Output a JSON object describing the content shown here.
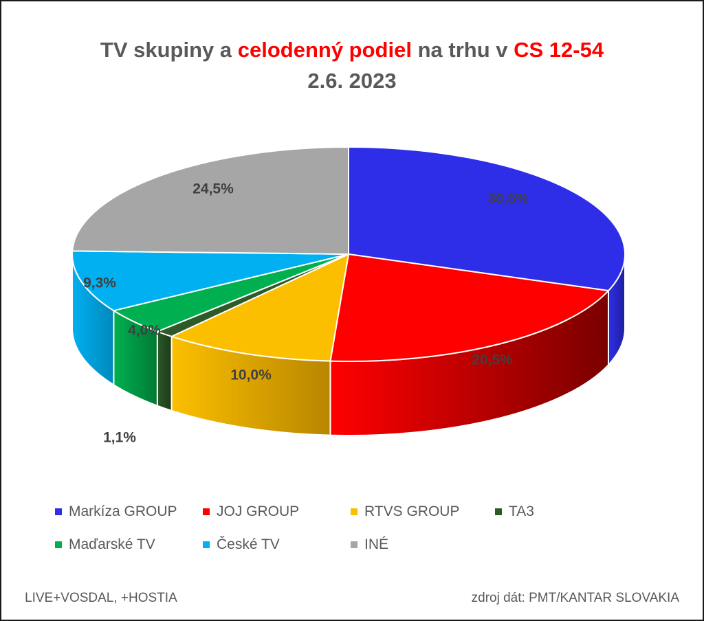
{
  "chart_data": {
    "type": "pie",
    "title_parts": [
      {
        "text": "TV skupiny a ",
        "highlight": false
      },
      {
        "text": "celodenný podiel",
        "highlight": true
      },
      {
        "text": " na trhu v ",
        "highlight": false
      },
      {
        "text": "CS 12-54",
        "highlight": true
      }
    ],
    "subtitle": "2.6. 2023",
    "slices": [
      {
        "name": "Markíza GROUP",
        "value": 30.5,
        "label": "30,5%",
        "color": "#2e2ee8",
        "side_color": "#1f1f9e"
      },
      {
        "name": "JOJ GROUP",
        "value": 20.5,
        "label": "20,5%",
        "color": "#ff0000",
        "side_color": "#7a0000"
      },
      {
        "name": "RTVS GROUP",
        "value": 10.0,
        "label": "10,0%",
        "color": "#fbbf00",
        "side_color": "#b88600"
      },
      {
        "name": "TA3",
        "value": 1.1,
        "label": "1,1%",
        "color": "#2d5a27",
        "side_color": "#1c3a18"
      },
      {
        "name": "Maďarské  TV",
        "value": 4.0,
        "label": "4,0%",
        "color": "#00b050",
        "side_color": "#007a36"
      },
      {
        "name": "České  TV",
        "value": 9.3,
        "label": "9,3%",
        "color": "#00b0f0",
        "side_color": "#0088bb"
      },
      {
        "name": "INÉ",
        "value": 24.5,
        "label": "24,5%",
        "color": "#a6a6a6",
        "side_color": "#707070"
      }
    ],
    "legend_position": "bottom"
  },
  "colors": {
    "title_text": "#595959",
    "title_highlight": "#ff0000"
  },
  "footer": {
    "left": "LIVE+VOSDAL, +HOSTIA",
    "right": "zdroj dát: PMT/KANTAR SLOVAKIA"
  }
}
